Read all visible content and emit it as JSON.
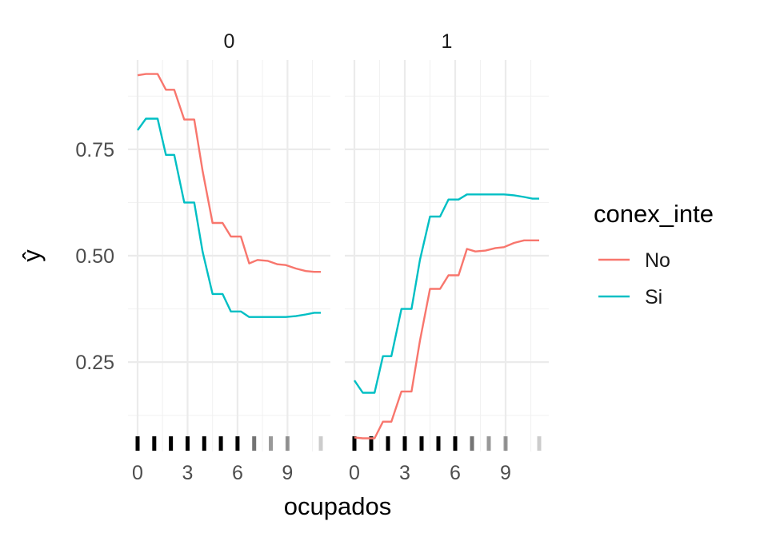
{
  "chart_data": {
    "type": "line",
    "xlabel": "ocupados",
    "ylabel": "ŷ",
    "xlim": [
      0,
      11
    ],
    "ylim": [
      0.04,
      0.96
    ],
    "x_ticks": [
      0,
      3,
      6,
      9
    ],
    "y_ticks": [
      0.25,
      0.5,
      0.75
    ],
    "y_tick_labels": [
      "0.25",
      "0.50",
      "0.75"
    ],
    "grid": true,
    "legend": {
      "title": "conex_inte",
      "position": "right",
      "entries": [
        {
          "name": "No",
          "color": "#F8766D"
        },
        {
          "name": "Si",
          "color": "#00BFC4"
        }
      ]
    },
    "rug": {
      "values": [
        0,
        1,
        2,
        3,
        4,
        5,
        6,
        7,
        8,
        9,
        11
      ],
      "opacity": [
        1,
        1,
        1,
        1,
        1,
        1,
        1,
        0.55,
        0.4,
        0.4,
        0.2
      ]
    },
    "panels": [
      {
        "label": "0",
        "series": [
          {
            "name": "No",
            "color": "#F8766D",
            "x": [
              0,
              0.5,
              1.2,
              1.7,
              2.2,
              2.8,
              3.4,
              3.9,
              4.5,
              5.1,
              5.6,
              6.2,
              6.7,
              7.2,
              7.8,
              8.4,
              8.9,
              9.5,
              10.1,
              10.6,
              11
            ],
            "y": [
              0.924,
              0.927,
              0.927,
              0.89,
              0.89,
              0.82,
              0.82,
              0.7,
              0.577,
              0.577,
              0.545,
              0.545,
              0.482,
              0.49,
              0.488,
              0.48,
              0.478,
              0.47,
              0.464,
              0.462,
              0.462
            ]
          },
          {
            "name": "Si",
            "color": "#00BFC4",
            "x": [
              0,
              0.5,
              1.2,
              1.7,
              2.2,
              2.8,
              3.4,
              3.9,
              4.5,
              5.1,
              5.6,
              6.2,
              6.7,
              7.2,
              7.8,
              8.4,
              8.9,
              9.5,
              10.1,
              10.6,
              11
            ],
            "y": [
              0.795,
              0.822,
              0.822,
              0.737,
              0.737,
              0.625,
              0.625,
              0.51,
              0.41,
              0.41,
              0.369,
              0.369,
              0.356,
              0.356,
              0.356,
              0.356,
              0.356,
              0.358,
              0.362,
              0.366,
              0.366
            ]
          }
        ]
      },
      {
        "label": "1",
        "series": [
          {
            "name": "No",
            "color": "#F8766D",
            "x": [
              0,
              0.5,
              1.2,
              1.7,
              2.2,
              2.8,
              3.4,
              3.9,
              4.5,
              5.1,
              5.6,
              6.2,
              6.7,
              7.2,
              7.8,
              8.4,
              8.9,
              9.5,
              10.1,
              10.6,
              11
            ],
            "y": [
              0.073,
              0.071,
              0.071,
              0.11,
              0.11,
              0.181,
              0.181,
              0.3,
              0.422,
              0.422,
              0.454,
              0.454,
              0.516,
              0.51,
              0.512,
              0.518,
              0.52,
              0.53,
              0.536,
              0.536,
              0.536
            ]
          },
          {
            "name": "Si",
            "color": "#00BFC4",
            "x": [
              0,
              0.5,
              1.2,
              1.7,
              2.2,
              2.8,
              3.4,
              3.9,
              4.5,
              5.1,
              5.6,
              6.2,
              6.7,
              7.2,
              7.8,
              8.4,
              8.9,
              9.5,
              10.1,
              10.6,
              11
            ],
            "y": [
              0.207,
              0.178,
              0.178,
              0.264,
              0.264,
              0.375,
              0.375,
              0.49,
              0.592,
              0.592,
              0.632,
              0.632,
              0.644,
              0.644,
              0.644,
              0.644,
              0.644,
              0.642,
              0.638,
              0.634,
              0.634
            ]
          }
        ]
      }
    ]
  }
}
